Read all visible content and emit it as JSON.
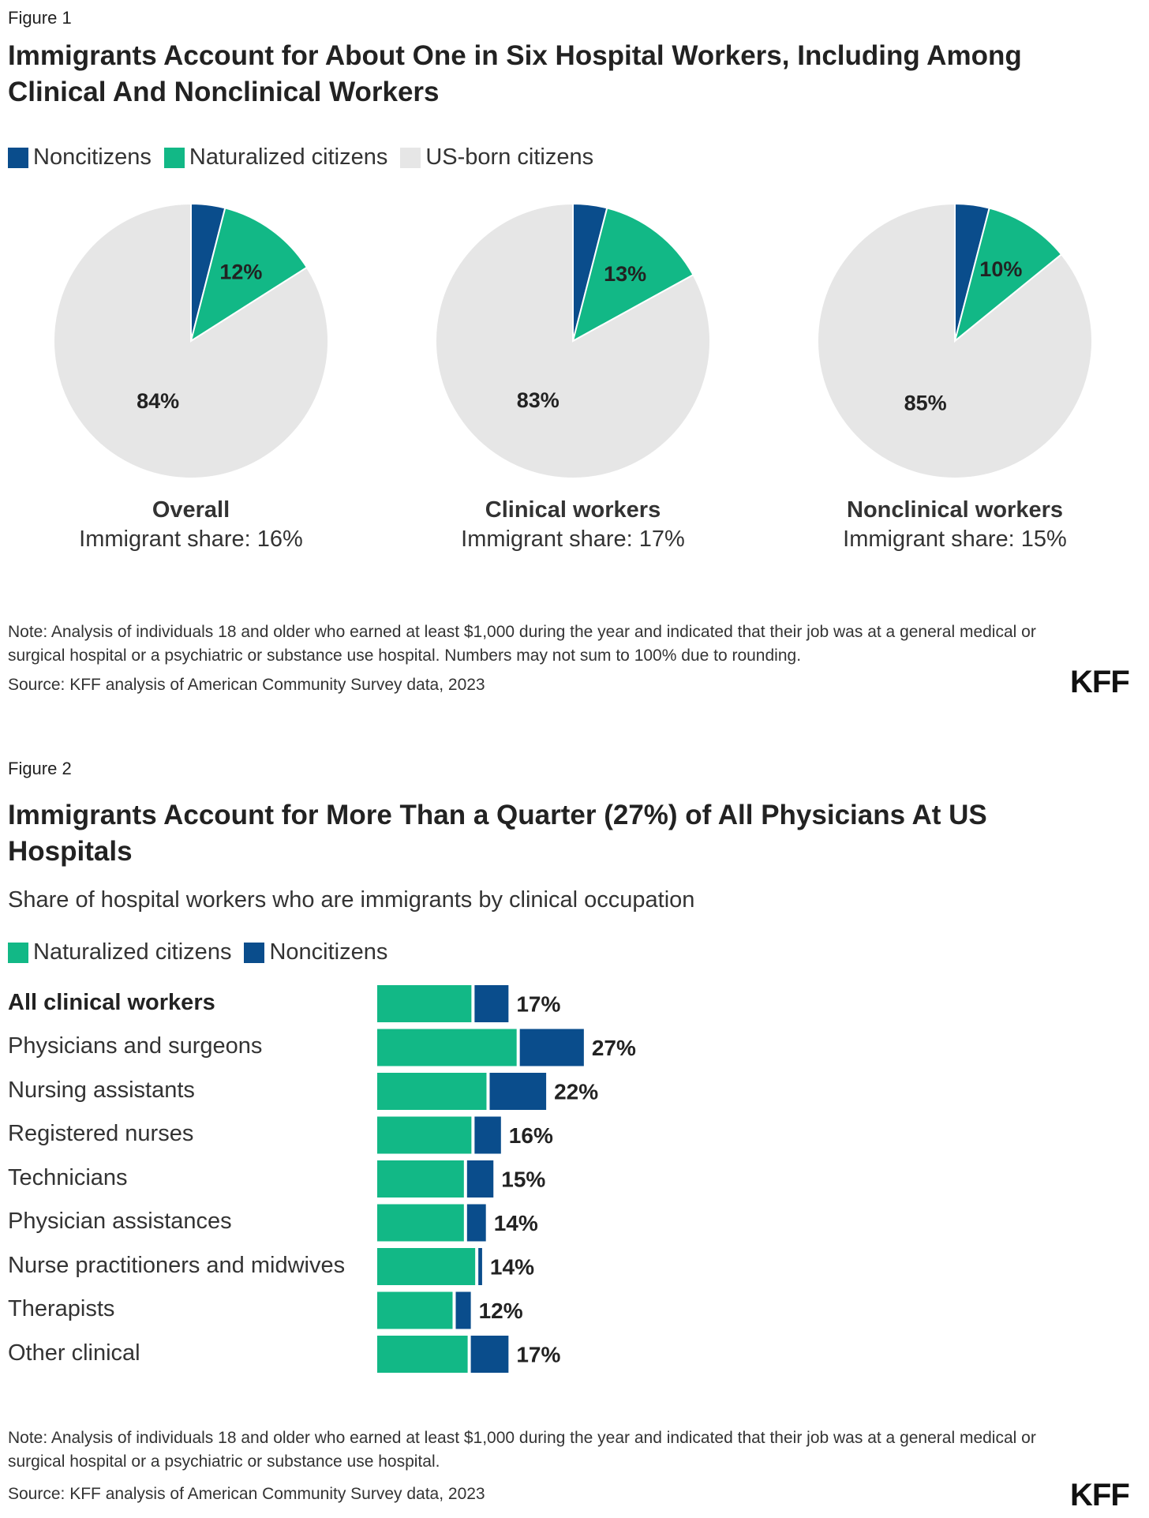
{
  "figure1": {
    "label": "Figure 1",
    "title": "Immigrants Account for About One in Six Hospital Workers, Including Among Clinical And Nonclinical Workers",
    "legend": [
      {
        "name": "Noncitizens",
        "color": "#0a4d8c"
      },
      {
        "name": "Naturalized citizens",
        "color": "#12b886"
      },
      {
        "name": "US-born citizens",
        "color": "#e6e6e6"
      }
    ],
    "note": "Note: Analysis of individuals 18 and older who earned at least $1,000 during the year and indicated that their job was at a general medical or surgical hospital or a psychiatric or substance use hospital. Numbers may not sum to 100% due to rounding.",
    "source": "Source: KFF analysis of American Community Survey data, 2023",
    "logo": "KFF"
  },
  "figure2": {
    "label": "Figure 2",
    "title": "Immigrants Account for More Than a Quarter (27%) of All Physicians At US Hospitals",
    "subtitle": "Share of hospital workers who are immigrants by clinical occupation",
    "legend": [
      {
        "name": "Naturalized citizens",
        "color": "#12b886"
      },
      {
        "name": "Noncitizens",
        "color": "#0a4d8c"
      }
    ],
    "note": "Note: Analysis of individuals 18 and older who earned at least $1,000 during the year and indicated that their job was at a general medical or surgical hospital or a psychiatric or substance use hospital.",
    "source": "Source: KFF analysis of American Community Survey data, 2023",
    "logo": "KFF"
  },
  "chart_data": [
    {
      "type": "pie",
      "series_names": [
        "Noncitizens",
        "Naturalized citizens",
        "US-born citizens"
      ],
      "colors": [
        "#0a4d8c",
        "#12b886",
        "#e6e6e6"
      ],
      "pies": [
        {
          "name": "Overall",
          "share_text": "Immigrant share: 16%",
          "values": [
            4,
            12,
            84
          ],
          "labels": [
            "",
            "12%",
            "84%"
          ]
        },
        {
          "name": "Clinical workers",
          "share_text": "Immigrant share: 17%",
          "values": [
            4,
            13,
            83
          ],
          "labels": [
            "",
            "13%",
            "83%"
          ]
        },
        {
          "name": "Nonclinical workers",
          "share_text": "Immigrant share: 15%",
          "values": [
            4,
            10,
            85
          ],
          "labels": [
            "",
            "10%",
            "85%"
          ]
        }
      ]
    },
    {
      "type": "bar",
      "orientation": "horizontal",
      "stacked": true,
      "categories": [
        "All clinical workers",
        "Physicians and surgeons",
        "Nursing assistants",
        "Registered nurses",
        "Technicians",
        "Physician assistances",
        "Nurse practitioners and midwives",
        "Therapists",
        "Other clinical"
      ],
      "bold_categories": [
        "All clinical workers"
      ],
      "series": [
        {
          "name": "Naturalized citizens",
          "color": "#12b886",
          "values": [
            12.5,
            18.5,
            14.5,
            12.5,
            11.5,
            11.5,
            13,
            10,
            12
          ]
        },
        {
          "name": "Noncitizens",
          "color": "#0a4d8c",
          "values": [
            4.5,
            8.5,
            7.5,
            3.5,
            3.5,
            2.5,
            0.5,
            2,
            5
          ]
        }
      ],
      "total_labels": [
        "17%",
        "27%",
        "22%",
        "16%",
        "15%",
        "14%",
        "14%",
        "12%",
        "17%"
      ],
      "xlim": [
        0,
        30
      ]
    }
  ]
}
